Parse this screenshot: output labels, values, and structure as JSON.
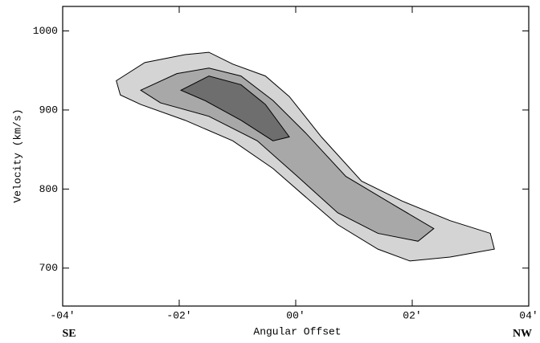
{
  "chart_data": {
    "type": "contour",
    "x_label": "Angular Offset",
    "y_label": "Velocity (km/s)",
    "annotations": [
      "SE",
      "NW"
    ],
    "xlim": [
      -4,
      4
    ],
    "ylim": [
      652,
      1031
    ],
    "xticks": [
      {
        "value": -4,
        "label": "-04'"
      },
      {
        "value": -2,
        "label": "-02'"
      },
      {
        "value": 0,
        "label": "00'"
      },
      {
        "value": 2,
        "label": "02'"
      },
      {
        "value": 4,
        "label": "04'"
      }
    ],
    "yticks": [
      700,
      800,
      900,
      1000
    ],
    "series": [
      {
        "color": "#d4d4d4",
        "x": [
          -3.08,
          -2.59,
          -1.9,
          -1.49,
          -1.08,
          -0.52,
          -0.11,
          0.44,
          1.13,
          1.82,
          2.65,
          3.34,
          3.41,
          2.65,
          1.96,
          1.41,
          0.72,
          0.17,
          -0.39,
          -1.08,
          -1.9,
          -2.66,
          -3.01
        ],
        "values": [
          937,
          960,
          970,
          973,
          958,
          943,
          917,
          866,
          810,
          785,
          760,
          744,
          724,
          714,
          709,
          724,
          755,
          790,
          826,
          861,
          887,
          907,
          919
        ]
      },
      {
        "color": "#a8a8a8",
        "x": [
          -2.66,
          -2.04,
          -1.49,
          -0.94,
          -0.39,
          0.17,
          0.86,
          1.68,
          2.37,
          2.1,
          1.41,
          0.72,
          0.03,
          -0.66,
          -1.49,
          -2.32
        ],
        "values": [
          925,
          946,
          953,
          943,
          912,
          871,
          816,
          780,
          750,
          734,
          744,
          770,
          816,
          861,
          892,
          909
        ]
      },
      {
        "color": "#6e6e6e",
        "x": [
          -1.97,
          -1.49,
          -0.94,
          -0.52,
          -0.11,
          -0.39,
          -0.94,
          -1.56
        ],
        "values": [
          925,
          943,
          932,
          907,
          866,
          861,
          887,
          912
        ]
      }
    ]
  }
}
